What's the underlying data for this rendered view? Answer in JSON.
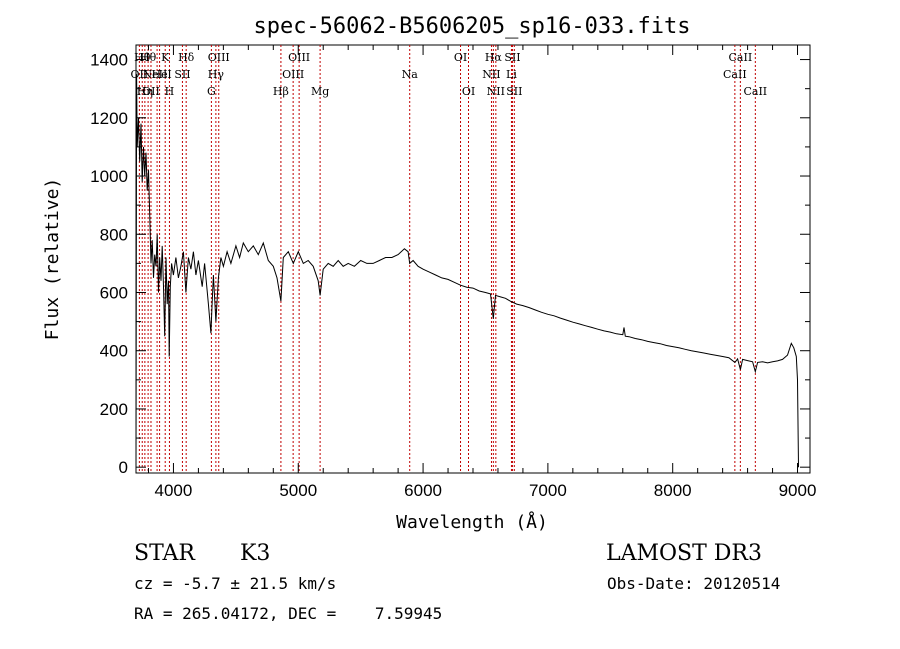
{
  "chart_data": {
    "type": "line",
    "title": "spec-56062-B5606205_sp16-033.fits",
    "xlabel": "Wavelength (Å)",
    "ylabel": "Flux (relative)",
    "xlim": [
      3700,
      9100
    ],
    "ylim": [
      -20,
      1450
    ],
    "x_ticks": [
      4000,
      5000,
      6000,
      7000,
      8000,
      9000
    ],
    "x_tick_labels": [
      "4000",
      "5000",
      "6000",
      "7000",
      "8000",
      "9000"
    ],
    "y_ticks": [
      0,
      200,
      400,
      600,
      800,
      1000,
      1200,
      1400
    ],
    "y_tick_labels": [
      "0",
      "200",
      "400",
      "600",
      "800",
      "1000",
      "1200",
      "1400"
    ],
    "series": [
      {
        "name": "spectrum",
        "color": "#000000",
        "points": [
          [
            3700,
            0
          ],
          [
            3705,
            1350
          ],
          [
            3710,
            1100
          ],
          [
            3720,
            1200
          ],
          [
            3730,
            1050
          ],
          [
            3740,
            1180
          ],
          [
            3750,
            980
          ],
          [
            3760,
            1100
          ],
          [
            3770,
            1000
          ],
          [
            3780,
            1080
          ],
          [
            3790,
            950
          ],
          [
            3800,
            1020
          ],
          [
            3810,
            870
          ],
          [
            3820,
            700
          ],
          [
            3830,
            780
          ],
          [
            3840,
            650
          ],
          [
            3850,
            730
          ],
          [
            3860,
            690
          ],
          [
            3870,
            800
          ],
          [
            3880,
            600
          ],
          [
            3890,
            720
          ],
          [
            3900,
            640
          ],
          [
            3910,
            760
          ],
          [
            3920,
            620
          ],
          [
            3930,
            450
          ],
          [
            3940,
            720
          ],
          [
            3950,
            560
          ],
          [
            3960,
            640
          ],
          [
            3966,
            380
          ],
          [
            3975,
            620
          ],
          [
            3985,
            700
          ],
          [
            4000,
            660
          ],
          [
            4020,
            720
          ],
          [
            4040,
            650
          ],
          [
            4060,
            690
          ],
          [
            4080,
            740
          ],
          [
            4100,
            600
          ],
          [
            4120,
            720
          ],
          [
            4140,
            680
          ],
          [
            4160,
            740
          ],
          [
            4180,
            660
          ],
          [
            4200,
            710
          ],
          [
            4230,
            620
          ],
          [
            4250,
            700
          ],
          [
            4280,
            560
          ],
          [
            4300,
            460
          ],
          [
            4310,
            560
          ],
          [
            4320,
            660
          ],
          [
            4340,
            500
          ],
          [
            4360,
            650
          ],
          [
            4380,
            720
          ],
          [
            4400,
            690
          ],
          [
            4430,
            740
          ],
          [
            4460,
            700
          ],
          [
            4500,
            760
          ],
          [
            4530,
            720
          ],
          [
            4560,
            770
          ],
          [
            4600,
            740
          ],
          [
            4640,
            760
          ],
          [
            4680,
            730
          ],
          [
            4720,
            770
          ],
          [
            4760,
            710
          ],
          [
            4800,
            690
          ],
          [
            4830,
            650
          ],
          [
            4861,
            570
          ],
          [
            4880,
            720
          ],
          [
            4920,
            740
          ],
          [
            4960,
            700
          ],
          [
            5000,
            740
          ],
          [
            5040,
            700
          ],
          [
            5080,
            710
          ],
          [
            5120,
            690
          ],
          [
            5160,
            640
          ],
          [
            5175,
            590
          ],
          [
            5200,
            680
          ],
          [
            5240,
            700
          ],
          [
            5280,
            690
          ],
          [
            5320,
            710
          ],
          [
            5360,
            690
          ],
          [
            5400,
            700
          ],
          [
            5450,
            690
          ],
          [
            5500,
            710
          ],
          [
            5550,
            700
          ],
          [
            5600,
            700
          ],
          [
            5650,
            710
          ],
          [
            5700,
            720
          ],
          [
            5750,
            720
          ],
          [
            5800,
            730
          ],
          [
            5850,
            750
          ],
          [
            5880,
            740
          ],
          [
            5893,
            700
          ],
          [
            5920,
            710
          ],
          [
            5960,
            690
          ],
          [
            6000,
            680
          ],
          [
            6050,
            670
          ],
          [
            6100,
            660
          ],
          [
            6150,
            650
          ],
          [
            6200,
            645
          ],
          [
            6250,
            635
          ],
          [
            6300,
            625
          ],
          [
            6350,
            618
          ],
          [
            6400,
            615
          ],
          [
            6450,
            605
          ],
          [
            6500,
            600
          ],
          [
            6540,
            595
          ],
          [
            6563,
            510
          ],
          [
            6580,
            590
          ],
          [
            6620,
            585
          ],
          [
            6660,
            580
          ],
          [
            6700,
            570
          ],
          [
            6750,
            560
          ],
          [
            6800,
            555
          ],
          [
            6850,
            548
          ],
          [
            6900,
            540
          ],
          [
            6950,
            532
          ],
          [
            7000,
            525
          ],
          [
            7050,
            520
          ],
          [
            7100,
            512
          ],
          [
            7150,
            505
          ],
          [
            7200,
            498
          ],
          [
            7250,
            492
          ],
          [
            7300,
            486
          ],
          [
            7350,
            480
          ],
          [
            7400,
            474
          ],
          [
            7450,
            468
          ],
          [
            7500,
            464
          ],
          [
            7550,
            458
          ],
          [
            7600,
            455
          ],
          [
            7610,
            480
          ],
          [
            7620,
            450
          ],
          [
            7650,
            448
          ],
          [
            7700,
            442
          ],
          [
            7750,
            438
          ],
          [
            7800,
            432
          ],
          [
            7850,
            428
          ],
          [
            7900,
            424
          ],
          [
            7950,
            418
          ],
          [
            8000,
            414
          ],
          [
            8050,
            410
          ],
          [
            8100,
            405
          ],
          [
            8150,
            400
          ],
          [
            8200,
            396
          ],
          [
            8250,
            392
          ],
          [
            8300,
            388
          ],
          [
            8350,
            384
          ],
          [
            8400,
            380
          ],
          [
            8450,
            376
          ],
          [
            8498,
            360
          ],
          [
            8520,
            372
          ],
          [
            8542,
            335
          ],
          [
            8560,
            370
          ],
          [
            8600,
            366
          ],
          [
            8640,
            362
          ],
          [
            8662,
            328
          ],
          [
            8680,
            360
          ],
          [
            8720,
            362
          ],
          [
            8760,
            358
          ],
          [
            8800,
            362
          ],
          [
            8840,
            365
          ],
          [
            8880,
            370
          ],
          [
            8920,
            385
          ],
          [
            8950,
            425
          ],
          [
            8970,
            410
          ],
          [
            8990,
            380
          ],
          [
            9000,
            300
          ],
          [
            9005,
            120
          ],
          [
            9008,
            0
          ]
        ]
      }
    ],
    "lines": [
      {
        "x": 3727,
        "label": "OII",
        "row": 2
      },
      {
        "x": 3750,
        "label": "Hθ",
        "row": 1
      },
      {
        "x": 3771,
        "label": "Hη",
        "row": 3
      },
      {
        "x": 3797,
        "label": "Hθ",
        "row": 1
      },
      {
        "x": 3820,
        "label": "OII",
        "row": 3
      },
      {
        "x": 3869,
        "label": "NeIII",
        "row": 2
      },
      {
        "x": 3889,
        "label": "He",
        "row": 2
      },
      {
        "x": 3934,
        "label": "K",
        "row": 1
      },
      {
        "x": 3968,
        "label": "H",
        "row": 3
      },
      {
        "x": 4072,
        "label": "SII",
        "row": 2
      },
      {
        "x": 4102,
        "label": "Hδ",
        "row": 1
      },
      {
        "x": 4304,
        "label": "G",
        "row": 3
      },
      {
        "x": 4340,
        "label": "Hγ",
        "row": 2
      },
      {
        "x": 4363,
        "label": "OIII",
        "row": 1
      },
      {
        "x": 4861,
        "label": "Hβ",
        "row": 3
      },
      {
        "x": 4959,
        "label": "OIII",
        "row": 2
      },
      {
        "x": 5007,
        "label": "OIII",
        "row": 1
      },
      {
        "x": 5175,
        "label": "Mg",
        "row": 3
      },
      {
        "x": 5893,
        "label": "Na",
        "row": 2
      },
      {
        "x": 6300,
        "label": "OI",
        "row": 1
      },
      {
        "x": 6364,
        "label": "OI",
        "row": 3
      },
      {
        "x": 6548,
        "label": "NII",
        "row": 2
      },
      {
        "x": 6563,
        "label": "Hα",
        "row": 1
      },
      {
        "x": 6583,
        "label": "NII",
        "row": 3
      },
      {
        "x": 6708,
        "label": "Li",
        "row": 2
      },
      {
        "x": 6716,
        "label": "SII",
        "row": 1
      },
      {
        "x": 6731,
        "label": "SII",
        "row": 3
      },
      {
        "x": 8498,
        "label": "CaII",
        "row": 2
      },
      {
        "x": 8542,
        "label": "CaII",
        "row": 1
      },
      {
        "x": 8662,
        "label": "CaII",
        "row": 3
      }
    ],
    "line_color": "#c00000"
  },
  "info": {
    "object_type": "STAR",
    "subclass": "K3",
    "survey": "LAMOST DR3",
    "cz": "cz = -5.7 ± 21.5 km/s",
    "obs_date": "Obs-Date: 20120514",
    "coords": "RA = 265.04172, DEC =    7.59945"
  }
}
